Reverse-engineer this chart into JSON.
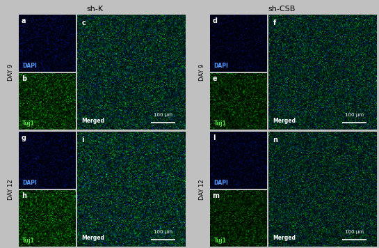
{
  "title_left": "sh-K",
  "title_right": "sh-CSB",
  "panel_labels_row1": [
    "a",
    "b",
    "c",
    "d",
    "e",
    "f"
  ],
  "panel_labels_row2": [
    "g",
    "h",
    "i",
    "l",
    "m",
    "n"
  ],
  "channel_label_dapi": "DAPI",
  "channel_label_tuj1": "Tuj1",
  "channel_label_merged": "Merged",
  "scale_bar_text": "100 μm",
  "day9_label": "DAY 9",
  "day12_label": "DAY 12",
  "text_color_blue": "#5599ff",
  "text_color_green": "#55dd44",
  "text_color_white": "#ffffff",
  "text_color_black": "#000000",
  "bg_color_fig": "#c0c0c0",
  "header_fontsize": 8,
  "panel_label_fontsize": 7,
  "channel_label_fontsize": 5.5,
  "rotated_label_fontsize": 6,
  "scale_bar_fontsize": 5,
  "fig_width": 5.45,
  "fig_height": 3.56
}
